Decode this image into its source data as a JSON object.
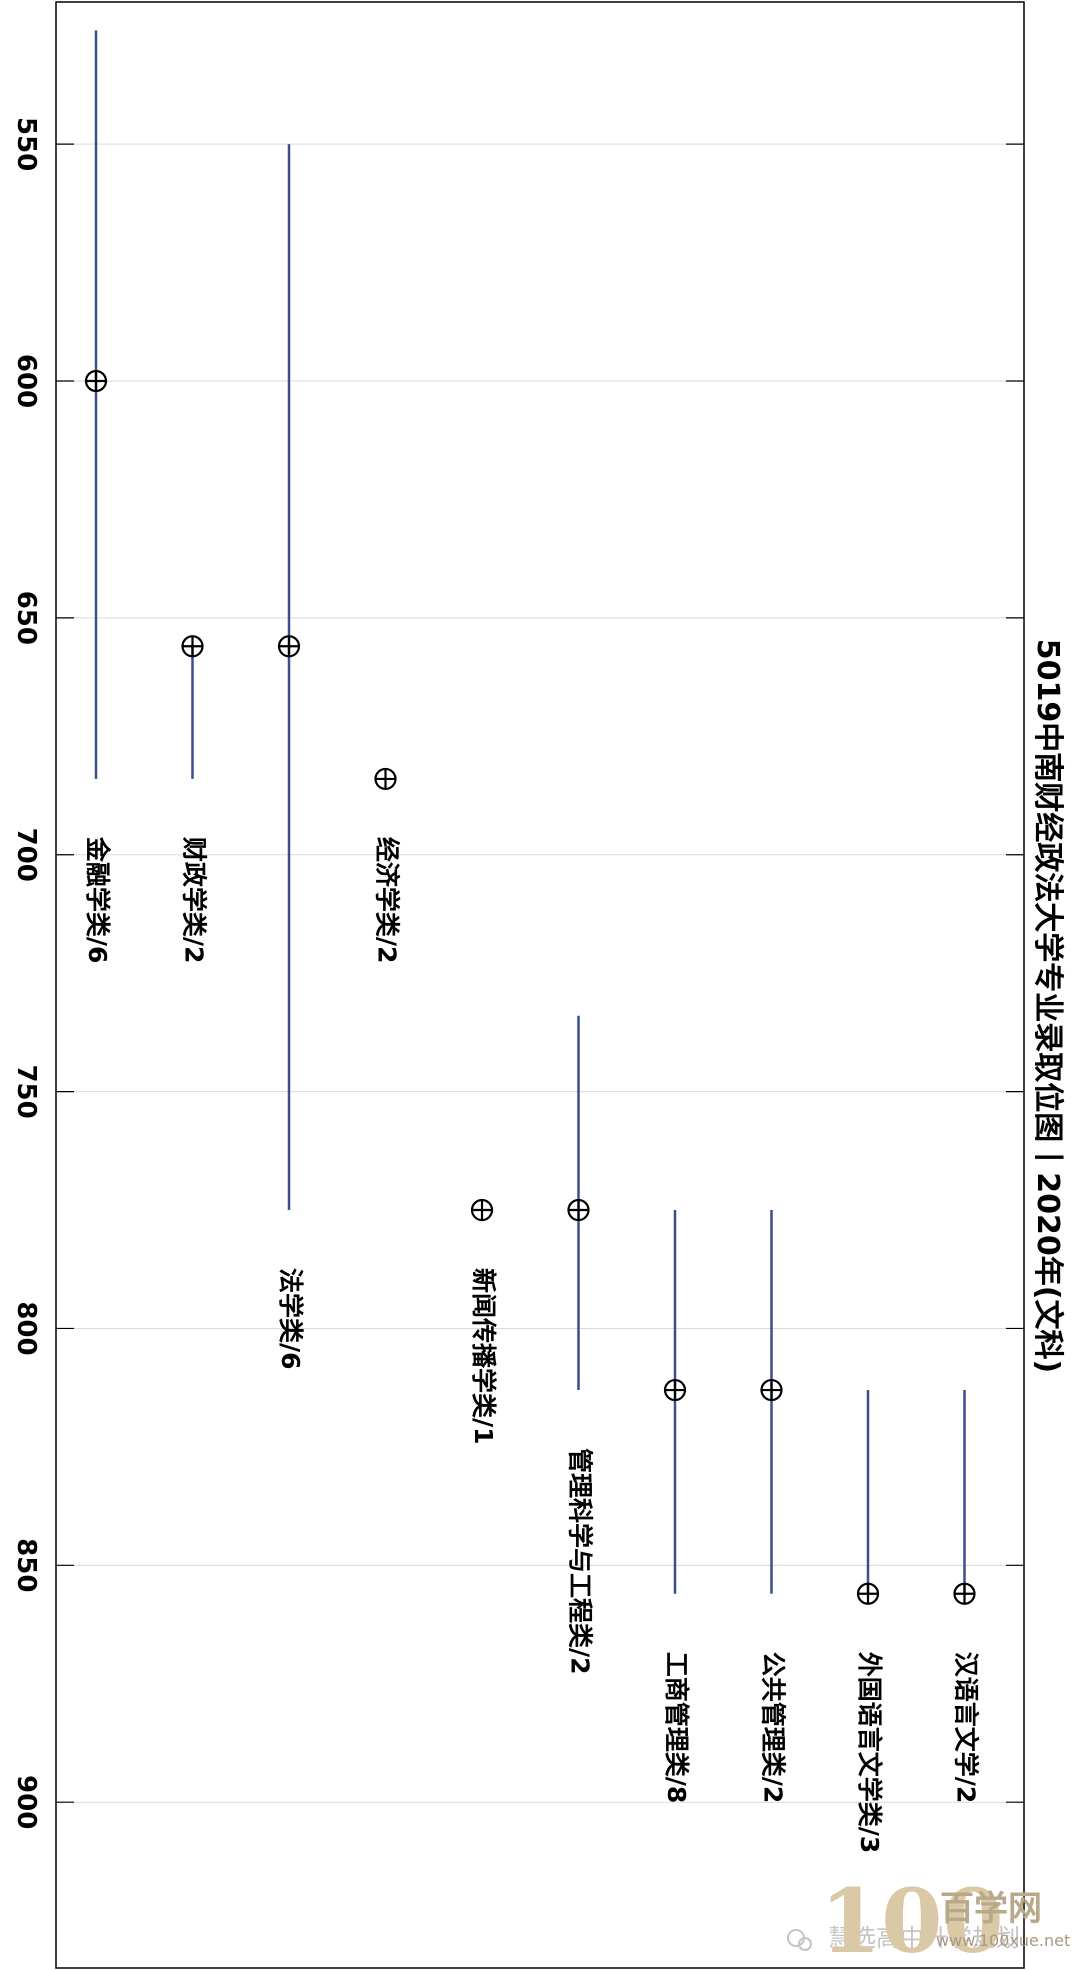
{
  "chart_data": {
    "type": "range",
    "orientation": "rotated-90",
    "title": "5019中南财经政法大学专业录取位图丨2020年(文科)",
    "xlabel": "",
    "ylabel": "",
    "axis": {
      "range": [
        520,
        935
      ],
      "ticks": [
        550,
        600,
        650,
        700,
        750,
        800,
        850,
        900
      ],
      "tick_labels": [
        "550",
        "600",
        "650",
        "700",
        "750",
        "800",
        "850",
        "900"
      ],
      "grid": true
    },
    "colors": {
      "range_line": "#3b4f8f",
      "marker": "#000000",
      "grid": "#d9d9d9"
    },
    "categories": [
      "金融学类/6",
      "财政学类/2",
      "法学类/6",
      "经济学类/2",
      "新闻传播学类/1",
      "管理科学与工程类/2",
      "工商管理类/8",
      "公共管理类/2",
      "外国语言文学类/3",
      "汉语言文学/2"
    ],
    "series": [
      {
        "category": "金融学类/6",
        "min": 526,
        "max": 684,
        "point": 600
      },
      {
        "category": "财政学类/2",
        "min": 656,
        "max": 684,
        "point": 656
      },
      {
        "category": "法学类/6",
        "min": 550,
        "max": 775,
        "point": 656
      },
      {
        "category": "经济学类/2",
        "min": null,
        "max": null,
        "point": 684
      },
      {
        "category": "新闻传播学类/1",
        "min": null,
        "max": null,
        "point": 775
      },
      {
        "category": "管理科学与工程类/2",
        "min": 734,
        "max": 813,
        "point": 775
      },
      {
        "category": "工商管理类/8",
        "min": 775,
        "max": 856,
        "point": 813
      },
      {
        "category": "公共管理类/2",
        "min": 775,
        "max": 856,
        "point": 813
      },
      {
        "category": "外国语言文学类/3",
        "min": 813,
        "max": 856,
        "point": 856
      },
      {
        "category": "汉语言文学/2",
        "min": 813,
        "max": 856,
        "point": 856
      }
    ]
  },
  "watermark": {
    "wechat_text": "慧选高中升学规划",
    "brand_digits": "100",
    "brand_name": "百学网",
    "brand_url": "www.100xue.net",
    "icon": "wechat-icon"
  }
}
